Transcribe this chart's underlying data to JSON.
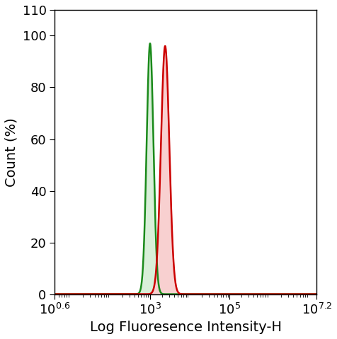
{
  "title": "",
  "xlabel": "Log Fluoresence Intensity-H",
  "ylabel": "Count (%)",
  "xlim_log": [
    0.6,
    7.2
  ],
  "ylim": [
    0,
    110
  ],
  "yticks": [
    0,
    20,
    40,
    60,
    80,
    100
  ],
  "xtick_positions_log": [
    0.6,
    3,
    5,
    7.2
  ],
  "xtick_labels": [
    "$10^{0.6}$",
    "$10^{3}$",
    "$10^{5}$",
    "$10^{7.2}$"
  ],
  "green_peak_log": 3.0,
  "green_sigma_log": 0.085,
  "green_amplitude": 97,
  "red_peak_log": 3.38,
  "red_sigma_log": 0.105,
  "red_amplitude": 96,
  "green_line_color": "#1a8a1a",
  "green_fill_color": "#d8efd8",
  "red_line_color": "#cc0000",
  "red_fill_color": "#f8d0d0",
  "background_color": "#ffffff",
  "xlabel_fontsize": 14,
  "ylabel_fontsize": 14,
  "tick_fontsize": 13,
  "linewidth": 1.8
}
